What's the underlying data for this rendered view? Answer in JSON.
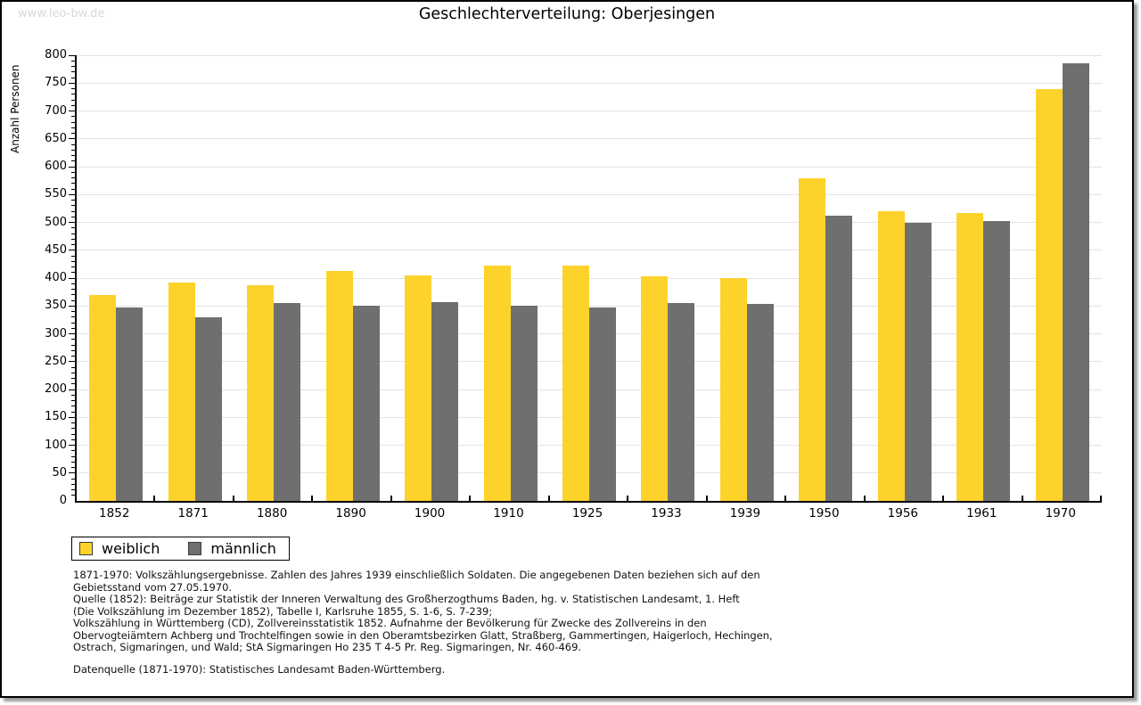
{
  "watermark": "www.leo-bw.de",
  "header": {
    "title": "Geschlechterverteilung: Oberjesingen"
  },
  "chart_data": {
    "type": "bar",
    "title": "Geschlechterverteilung: Oberjesingen",
    "xlabel": "",
    "ylabel": "Anzahl Personen",
    "ylim": [
      0,
      800
    ],
    "ytick_major": 50,
    "ytick_minor": 10,
    "grid": true,
    "legend_position": "bottom-left",
    "categories": [
      "1852",
      "1871",
      "1880",
      "1890",
      "1900",
      "1910",
      "1925",
      "1933",
      "1939",
      "1950",
      "1956",
      "1961",
      "1970"
    ],
    "series": [
      {
        "name": "weiblich",
        "color": "#fdd32b",
        "values": [
          370,
          392,
          387,
          413,
          405,
          422,
          422,
          403,
          400,
          579,
          520,
          517,
          740
        ]
      },
      {
        "name": "männlich",
        "color": "#706f6f",
        "values": [
          348,
          330,
          355,
          351,
          357,
          351,
          347,
          355,
          353,
          512,
          500,
          502,
          786
        ]
      }
    ]
  },
  "footnotes": [
    "1871-1970: Volkszählungsergebnisse. Zahlen des Jahres 1939 einschließlich Soldaten. Die angegebenen Daten beziehen sich auf den",
    "Gebietsstand vom 27.05.1970.",
    "Quelle (1852): Beiträge zur Statistik der Inneren Verwaltung des Großherzogthums Baden, hg. v. Statistischen Landesamt, 1. Heft",
    "(Die Volkszählung im Dezember 1852), Tabelle I, Karlsruhe 1855, S. 1-6, S. 7-239;",
    "Volkszählung in Württemberg (CD), Zollvereinsstatistik 1852. Aufnahme der Bevölkerung für Zwecke des Zollvereins in den",
    "Obervogteiämtern Achberg und Trochtelfingen sowie in den Oberamtsbezirken Glatt, Straßberg, Gammertingen, Haigerloch, Hechingen,",
    "Ostrach, Sigmaringen, und Wald; StA Sigmaringen Ho 235 T 4-5 Pr. Reg. Sigmaringen, Nr. 460-469."
  ],
  "datasource": "Datenquelle (1871-1970): Statistisches Landesamt Baden-Württemberg."
}
